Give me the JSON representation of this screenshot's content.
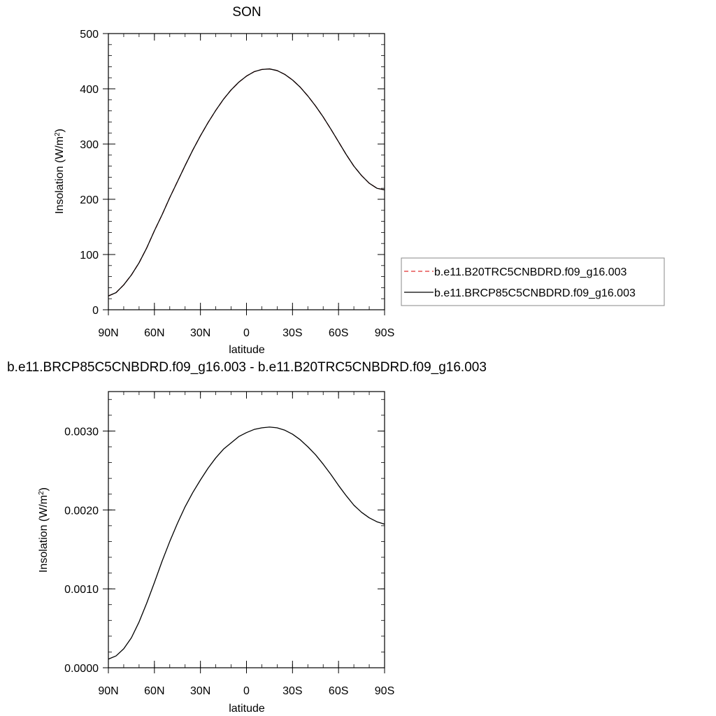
{
  "chart_data": [
    {
      "type": "line",
      "title": "SON",
      "xlabel": "latitude",
      "ylabel": "Insolation (W/m",
      "ylabel_sup": "2",
      "ylabel_end": ")",
      "xlim": [
        90,
        -90
      ],
      "ylim": [
        0,
        500
      ],
      "x_tick_values": [
        90,
        60,
        30,
        0,
        -30,
        -60,
        -90
      ],
      "x_tick_labels": [
        "90N",
        "60N",
        "30N",
        "0",
        "30S",
        "60S",
        "90S"
      ],
      "y_tick_values": [
        0,
        100,
        200,
        300,
        400,
        500
      ],
      "y_tick_labels": [
        "0",
        "100",
        "200",
        "300",
        "400",
        "500"
      ],
      "x": [
        90,
        85,
        80,
        75,
        70,
        65,
        60,
        55,
        50,
        45,
        40,
        35,
        30,
        25,
        20,
        15,
        10,
        5,
        0,
        -5,
        -10,
        -15,
        -20,
        -25,
        -30,
        -35,
        -40,
        -45,
        -50,
        -55,
        -60,
        -65,
        -70,
        -75,
        -80,
        -85,
        -90
      ],
      "series": [
        {
          "name": "b.e11.B20TRC5CNBDRD.f09_g16.003",
          "color": "#e03030",
          "style": "dashed",
          "values": [
            25,
            31,
            45,
            63,
            85,
            112,
            143,
            172,
            203,
            232,
            261,
            289,
            315,
            339,
            361,
            381,
            398,
            412,
            423,
            431,
            435,
            436,
            433,
            426,
            416,
            403,
            387,
            369,
            349,
            327,
            304,
            281,
            260,
            243,
            229,
            220,
            217
          ]
        },
        {
          "name": "b.e11.BRCP85C5CNBDRD.f09_g16.003",
          "color": "#000000",
          "style": "solid",
          "values": [
            25,
            31,
            45,
            63,
            85,
            112,
            143,
            172,
            203,
            232,
            261,
            289,
            315,
            339,
            361,
            381,
            398,
            412,
            423,
            431,
            435,
            436,
            433,
            426,
            416,
            403,
            387,
            369,
            349,
            327,
            304,
            281,
            260,
            243,
            229,
            220,
            217
          ]
        }
      ],
      "legend": "right"
    },
    {
      "type": "line",
      "title": "b.e11.BRCP85C5CNBDRD.f09_g16.003 - b.e11.B20TRC5CNBDRD.f09_g16.003",
      "xlabel": "latitude",
      "ylabel": "Insolation (W/m",
      "ylabel_sup": "2",
      "ylabel_end": ")",
      "xlim": [
        90,
        -90
      ],
      "ylim": [
        0,
        0.0035
      ],
      "x_tick_values": [
        90,
        60,
        30,
        0,
        -30,
        -60,
        -90
      ],
      "x_tick_labels": [
        "90N",
        "60N",
        "30N",
        "0",
        "30S",
        "60S",
        "90S"
      ],
      "y_tick_values": [
        0,
        0.001,
        0.002,
        0.003
      ],
      "y_tick_labels": [
        "0.0000",
        "0.0010",
        "0.0020",
        "0.0030"
      ],
      "x": [
        90,
        85,
        80,
        75,
        70,
        65,
        60,
        55,
        50,
        45,
        40,
        35,
        30,
        25,
        20,
        15,
        10,
        5,
        0,
        -5,
        -10,
        -15,
        -20,
        -25,
        -30,
        -35,
        -40,
        -45,
        -50,
        -55,
        -60,
        -65,
        -70,
        -75,
        -80,
        -85,
        -90
      ],
      "series": [
        {
          "name": "",
          "color": "#000000",
          "style": "solid",
          "values": [
            0.00011,
            0.00015,
            0.00024,
            0.00038,
            0.00058,
            0.00082,
            0.00108,
            0.00135,
            0.0016,
            0.00183,
            0.00204,
            0.00222,
            0.00238,
            0.00253,
            0.00266,
            0.00277,
            0.00285,
            0.00293,
            0.00298,
            0.00302,
            0.00304,
            0.00305,
            0.00304,
            0.00301,
            0.00296,
            0.00289,
            0.0028,
            0.0027,
            0.00258,
            0.00245,
            0.00231,
            0.00218,
            0.00206,
            0.00197,
            0.0019,
            0.00185,
            0.00182
          ]
        }
      ]
    }
  ]
}
